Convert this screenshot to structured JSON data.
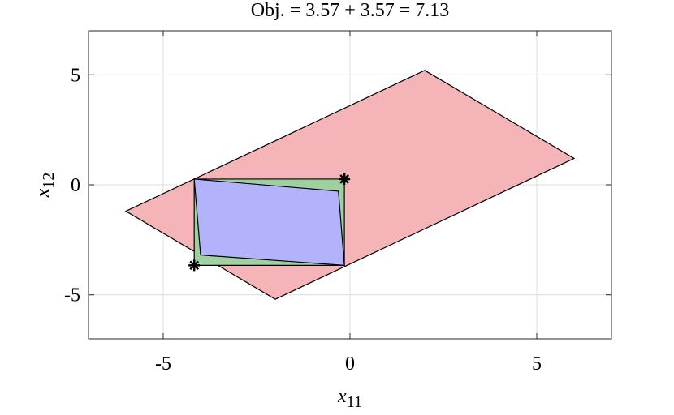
{
  "chart_data": {
    "type": "polygon",
    "title": "Obj. = 3.57 + 3.57 = 7.13",
    "xlabel": "x",
    "xlabel_sub": "11",
    "ylabel": "x",
    "ylabel_sub": "12",
    "xlim": [
      -7,
      7
    ],
    "ylim": [
      -7,
      7
    ],
    "xticks": [
      -5,
      0,
      5
    ],
    "yticks": [
      -5,
      0,
      5
    ],
    "grid": true,
    "series": [
      {
        "color": "#f5b5b8",
        "x": [
          -6,
          2,
          6,
          -2
        ],
        "y": [
          -1.2,
          5.2,
          1.2,
          -5.2
        ]
      },
      {
        "color": "#9fd09f",
        "x": [
          -4.17,
          -0.15,
          -0.15,
          -4.17
        ],
        "y": [
          0.26,
          0.26,
          -3.66,
          -3.66
        ]
      },
      {
        "color": "#b3b3fb",
        "x": [
          -4.17,
          -0.31,
          -0.15,
          -4.0
        ],
        "y": [
          0.26,
          -0.29,
          -3.66,
          -3.19
        ]
      },
      {
        "color": "#000000",
        "marker": "*",
        "x": [
          -0.15,
          -4.17
        ],
        "y": [
          0.26,
          -3.66
        ]
      }
    ]
  }
}
